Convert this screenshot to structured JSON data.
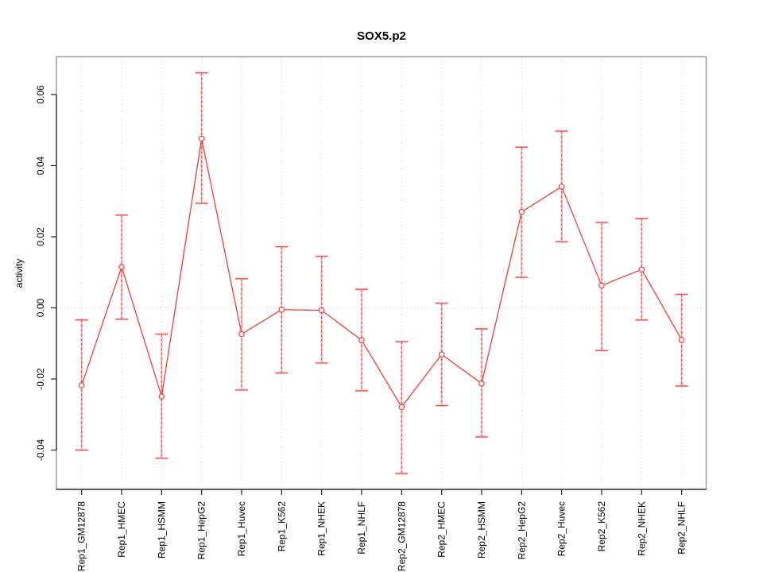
{
  "window": {
    "title": "SOX5.p2"
  },
  "colors": {
    "series": "#f43b3b",
    "error_bar_light": "#f99d9d",
    "grid": "#d8d8d8",
    "box": "#9c9c9c",
    "axis": "#222222",
    "text": "#000000",
    "background": "#ffffff"
  },
  "chart_data": {
    "type": "line",
    "title": "SOX5.p2",
    "xlabel": "",
    "ylabel": "activity",
    "legend": null,
    "grid": "vertical-dotted-per-category, dotted-zero-line",
    "ylim": [
      -0.051,
      0.071
    ],
    "yticks": [
      -0.04,
      -0.02,
      0.0,
      0.02,
      0.04,
      0.06
    ],
    "ytick_labels": [
      "-0.04",
      "-0.02",
      "0.00",
      "0.02",
      "0.04",
      "0.06"
    ],
    "xtick_label_rotation_deg": 90,
    "categories": [
      "Rep1_GM12878",
      "Rep1_HMEC",
      "Rep1_HSMM",
      "Rep1_HepG2",
      "Rep1_Huvec",
      "Rep1_K562",
      "Rep1_NHEK",
      "Rep1_NHLF",
      "Rep2_GM12878",
      "Rep2_HMEC",
      "Rep2_HSMM",
      "Rep2_HepG2",
      "Rep2_Huvec",
      "Rep2_K562",
      "Rep2_NHEK",
      "Rep2_NHLF"
    ],
    "series": [
      {
        "name": "activity",
        "marker": "open-circle",
        "values": [
          -0.0218,
          0.0115,
          -0.0249,
          0.0476,
          -0.0074,
          -0.0005,
          -0.0007,
          -0.0091,
          -0.0279,
          -0.0131,
          -0.0213,
          0.027,
          0.0341,
          0.0063,
          0.0108,
          -0.009
        ],
        "err_low": [
          -0.04,
          -0.0032,
          -0.0423,
          0.0294,
          -0.0231,
          -0.0183,
          -0.0155,
          -0.0233,
          -0.0466,
          -0.0275,
          -0.0363,
          0.0086,
          0.0186,
          -0.012,
          -0.0034,
          -0.022
        ],
        "err_high": [
          -0.0034,
          0.0261,
          -0.0074,
          0.0661,
          0.0082,
          0.0172,
          0.0145,
          0.0052,
          -0.0095,
          0.0013,
          -0.0059,
          0.0452,
          0.0497,
          0.024,
          0.0251,
          0.0038
        ]
      }
    ]
  }
}
